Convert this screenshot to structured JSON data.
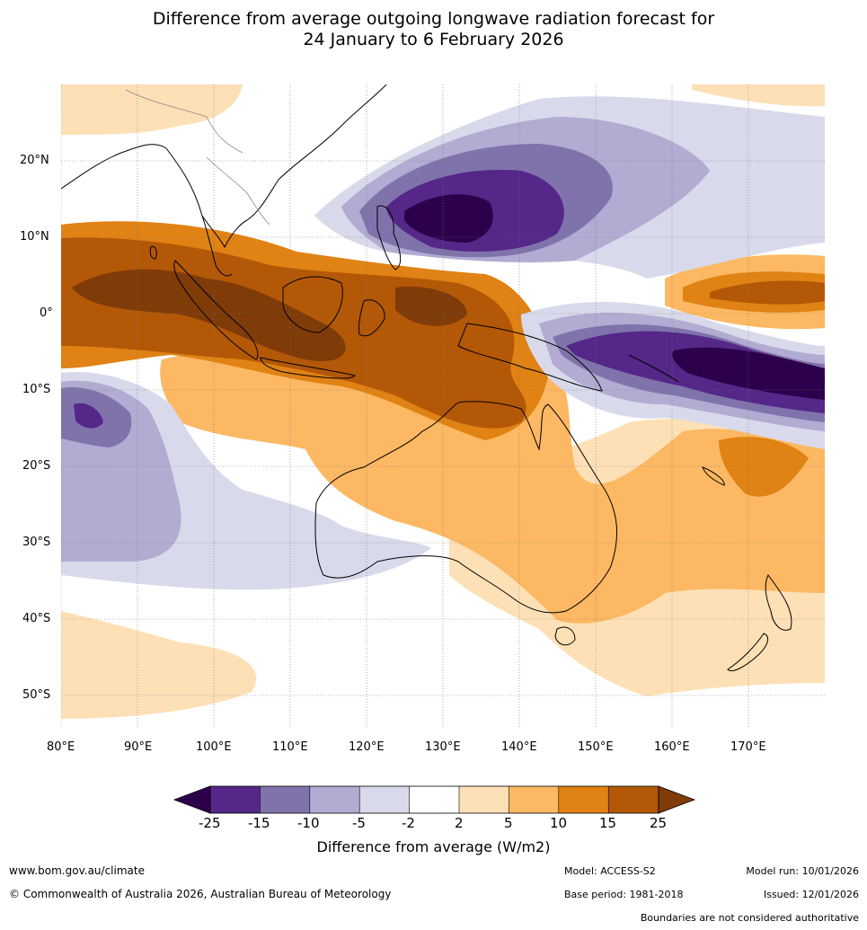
{
  "title": {
    "line1": "Difference from average outgoing longwave radiation forecast for",
    "line2": "24 January to 6 February 2026"
  },
  "map": {
    "lon_ticks": [
      "80°E",
      "90°E",
      "100°E",
      "110°E",
      "120°E",
      "130°E",
      "140°E",
      "150°E",
      "160°E",
      "170°E"
    ],
    "lat_ticks": [
      "20°N",
      "10°N",
      "0°",
      "10°S",
      "20°S",
      "30°S",
      "40°S",
      "50°S"
    ]
  },
  "colorbar": {
    "title": "Difference from average (W/m2)",
    "tick_labels": [
      "-25",
      "-15",
      "-10",
      "-5",
      "-2",
      "2",
      "5",
      "10",
      "15",
      "25"
    ],
    "colors": {
      "lt_-25": "#2d004b",
      "-25_-15": "#542788",
      "-15_-10": "#8073ac",
      "-10_-5": "#b2abd2",
      "-5_-2": "#d8daeb",
      "-2_2": "#ffffff",
      "2_5": "#fee0b6",
      "5_10": "#fdb863",
      "10_15": "#e08214",
      "15_25": "#b35806",
      "gt_25": "#7f3b08"
    }
  },
  "footer": {
    "website": "www.bom.gov.au/climate",
    "copyright": "© Commonwealth of Australia 2026, Australian Bureau of Meteorology",
    "model": "Model: ACCESS-S2",
    "base_period": "Base period: 1981-2018",
    "model_run": "Model run: 10/01/2026",
    "issued": "Issued: 12/01/2026",
    "disclaimer": "Boundaries are not considered authoritative"
  }
}
